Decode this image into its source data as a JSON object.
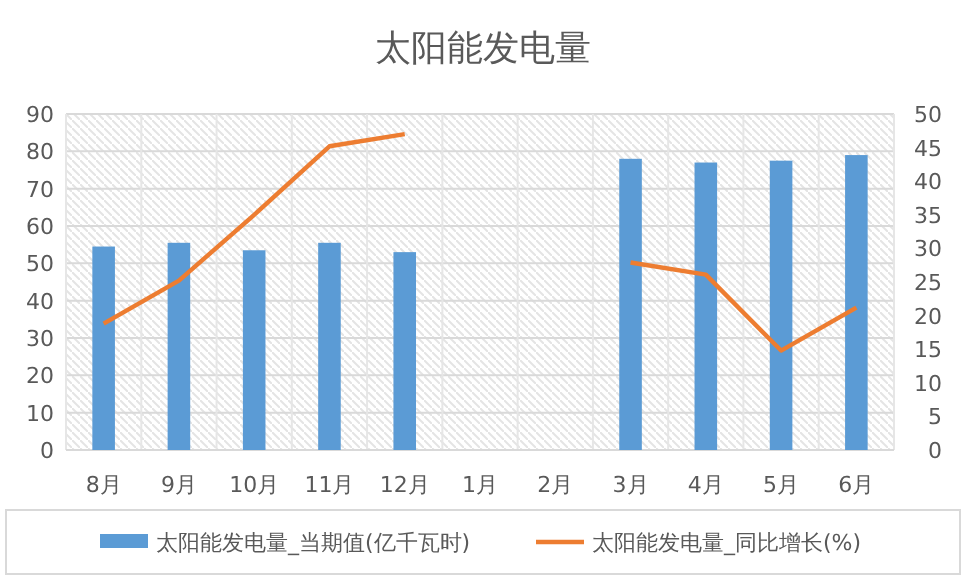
{
  "chart_data": {
    "type": "bar",
    "title": "太阳能发电量",
    "categories": [
      "8月",
      "9月",
      "10月",
      "11月",
      "12月",
      "1月",
      "2月",
      "3月",
      "4月",
      "5月",
      "6月"
    ],
    "series": [
      {
        "name": "太阳能发电量_当期值(亿千瓦时)",
        "color": "#5b9bd5",
        "values": [
          54.5,
          55.5,
          53.5,
          55.5,
          53,
          null,
          null,
          78,
          77,
          77.5,
          79
        ]
      },
      {
        "name": "太阳能发电量_同比增长(%)",
        "type": "line",
        "axis": "y2",
        "color": "#ed7d31",
        "values": [
          18.8,
          25.2,
          35,
          45.2,
          47,
          null,
          null,
          27.9,
          26.1,
          14.8,
          21.2
        ]
      }
    ],
    "ylim": [
      0,
      90
    ],
    "yticks": [
      0,
      10,
      20,
      30,
      40,
      50,
      60,
      70,
      80,
      90
    ],
    "y2lim": [
      0,
      50
    ],
    "y2ticks": [
      0,
      5,
      10,
      15,
      20,
      25,
      30,
      35,
      40,
      45,
      50
    ],
    "grid": true,
    "legend": "bottom",
    "marker": "none",
    "line_style": "solid"
  }
}
